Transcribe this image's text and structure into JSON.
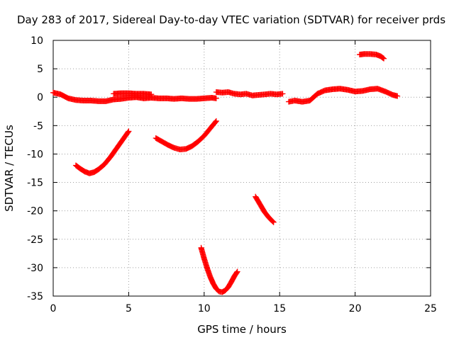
{
  "chart_data": {
    "type": "scatter",
    "title": "Day 283 of 2017, Sidereal Day-to-day VTEC variation (SDTVAR) for receiver prds",
    "xlabel": "GPS time / hours",
    "ylabel": "SDTVAR / TECUs",
    "xlim": [
      0,
      25
    ],
    "ylim": [
      -35,
      10
    ],
    "xticks": [
      0,
      5,
      10,
      15,
      20,
      25
    ],
    "yticks": [
      -35,
      -30,
      -25,
      -20,
      -15,
      -10,
      -5,
      0,
      5,
      10
    ],
    "grid": true,
    "marker": "+",
    "marker_color": "#ff0000",
    "series": [
      {
        "name": "SDTVAR",
        "segments": [
          {
            "x": [
              0.0,
              0.5,
              1.0,
              1.5,
              2.0,
              2.5,
              3.0,
              3.5,
              4.0,
              4.5,
              5.0,
              5.5,
              6.0,
              6.5,
              7.0,
              7.5,
              8.0,
              8.5,
              9.0,
              9.5,
              10.0,
              10.5,
              10.8
            ],
            "y": [
              0.8,
              0.5,
              -0.2,
              -0.5,
              -0.6,
              -0.6,
              -0.7,
              -0.7,
              -0.4,
              -0.3,
              -0.1,
              0.0,
              -0.2,
              -0.1,
              -0.2,
              -0.2,
              -0.3,
              -0.2,
              -0.3,
              -0.3,
              -0.2,
              -0.1,
              -0.2
            ]
          },
          {
            "x": [
              4.0,
              4.5,
              5.0,
              5.5,
              6.0,
              6.5
            ],
            "y": [
              0.6,
              0.7,
              0.7,
              0.6,
              0.6,
              0.5
            ]
          },
          {
            "x": [
              10.8,
              11.2,
              11.6,
              12.0,
              12.4,
              12.8,
              13.2,
              13.6,
              14.0,
              14.4,
              14.8,
              15.2
            ],
            "y": [
              0.9,
              0.8,
              0.9,
              0.6,
              0.5,
              0.6,
              0.3,
              0.4,
              0.5,
              0.6,
              0.5,
              0.6
            ]
          },
          {
            "x": [
              15.6,
              16.0,
              16.5,
              17.0,
              17.5,
              18.0,
              18.5,
              19.0,
              19.5,
              20.0,
              20.5,
              21.0,
              21.5,
              22.0,
              22.5,
              22.8
            ],
            "y": [
              -0.8,
              -0.6,
              -0.8,
              -0.6,
              0.6,
              1.2,
              1.4,
              1.5,
              1.3,
              1.0,
              1.1,
              1.4,
              1.5,
              1.0,
              0.4,
              0.2
            ]
          },
          {
            "x": [
              20.3,
              20.6,
              21.0,
              21.4,
              21.7,
              21.9
            ],
            "y": [
              7.5,
              7.6,
              7.6,
              7.5,
              7.2,
              6.8
            ]
          },
          {
            "x": [
              1.5,
              1.8,
              2.1,
              2.4,
              2.7,
              3.0,
              3.4,
              3.8,
              4.2,
              4.6,
              5.0
            ],
            "y": [
              -12.0,
              -12.6,
              -13.1,
              -13.4,
              -13.2,
              -12.7,
              -11.8,
              -10.5,
              -9.0,
              -7.5,
              -6.0
            ]
          },
          {
            "x": [
              6.8,
              7.2,
              7.6,
              8.0,
              8.4,
              8.8,
              9.2,
              9.6,
              10.0,
              10.4,
              10.8
            ],
            "y": [
              -7.2,
              -7.8,
              -8.4,
              -8.9,
              -9.2,
              -9.1,
              -8.6,
              -7.8,
              -6.8,
              -5.5,
              -4.2
            ]
          },
          {
            "x": [
              13.4,
              13.6,
              13.8,
              14.0,
              14.2,
              14.4,
              14.6
            ],
            "y": [
              -17.5,
              -18.4,
              -19.3,
              -20.2,
              -20.9,
              -21.5,
              -22.0
            ]
          },
          {
            "x": [
              9.8,
              10.0,
              10.2,
              10.4,
              10.6,
              10.8,
              11.0,
              11.2,
              11.4,
              11.6,
              11.8,
              12.0,
              12.2
            ],
            "y": [
              -26.5,
              -28.4,
              -30.1,
              -31.6,
              -32.8,
              -33.7,
              -34.2,
              -34.3,
              -34.0,
              -33.4,
              -32.5,
              -31.5,
              -30.7
            ]
          }
        ]
      }
    ]
  }
}
